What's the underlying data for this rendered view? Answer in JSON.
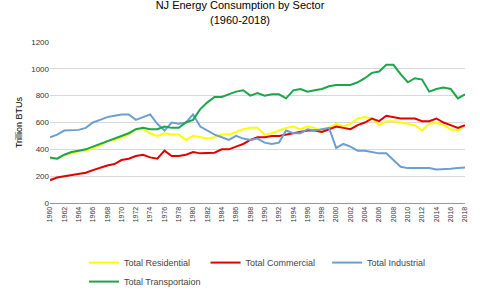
{
  "chart_data": {
    "type": "line",
    "title": "NJ Energy Consumption by Sector\n(1960-2018)",
    "y_label": "Trillion BTUs",
    "x": [
      1960,
      1961,
      1962,
      1963,
      1964,
      1965,
      1966,
      1967,
      1968,
      1969,
      1970,
      1971,
      1972,
      1973,
      1974,
      1975,
      1976,
      1977,
      1978,
      1979,
      1980,
      1981,
      1982,
      1983,
      1984,
      1985,
      1986,
      1987,
      1988,
      1989,
      1990,
      1991,
      1992,
      1993,
      1994,
      1995,
      1996,
      1997,
      1998,
      1999,
      2000,
      2001,
      2002,
      2003,
      2004,
      2005,
      2006,
      2007,
      2008,
      2009,
      2010,
      2011,
      2012,
      2013,
      2014,
      2015,
      2016,
      2017,
      2018
    ],
    "xlim": [
      1960,
      2018
    ],
    "xticks": [
      1960,
      1962,
      1964,
      1966,
      1968,
      1970,
      1972,
      1974,
      1976,
      1978,
      1980,
      1982,
      1984,
      1986,
      1988,
      1990,
      1992,
      1994,
      1996,
      1998,
      2000,
      2002,
      2004,
      2006,
      2008,
      2010,
      2012,
      2014,
      2016,
      2018
    ],
    "ylim": [
      0,
      1200
    ],
    "yticks": [
      0,
      200,
      400,
      600,
      800,
      1000,
      1200
    ],
    "grid": true,
    "legend": "bottom",
    "series": [
      {
        "name": "Total Residential",
        "color": "#ffff00",
        "values": [
          330,
          330,
          355,
          370,
          385,
          390,
          410,
          430,
          460,
          470,
          490,
          510,
          550,
          550,
          520,
          500,
          520,
          510,
          510,
          470,
          500,
          490,
          480,
          490,
          510,
          510,
          530,
          550,
          560,
          560,
          510,
          520,
          540,
          560,
          570,
          550,
          570,
          560,
          530,
          560,
          590,
          570,
          590,
          630,
          640,
          630,
          580,
          610,
          610,
          600,
          590,
          580,
          540,
          590,
          600,
          580,
          550,
          540,
          580
        ]
      },
      {
        "name": "Total Commercial",
        "color": "#e00000",
        "values": [
          170,
          190,
          200,
          210,
          215,
          225,
          245,
          265,
          280,
          290,
          320,
          330,
          350,
          360,
          340,
          330,
          390,
          350,
          350,
          360,
          380,
          370,
          370,
          375,
          400,
          400,
          420,
          440,
          470,
          490,
          490,
          500,
          500,
          510,
          520,
          530,
          540,
          540,
          530,
          550,
          570,
          560,
          550,
          580,
          600,
          630,
          610,
          650,
          640,
          630,
          630,
          630,
          610,
          610,
          630,
          600,
          580,
          560,
          580
        ]
      },
      {
        "name": "Total Industrial",
        "color": "#6c9fd0",
        "values": [
          490,
          510,
          540,
          540,
          545,
          560,
          600,
          620,
          640,
          650,
          660,
          660,
          620,
          640,
          660,
          590,
          540,
          600,
          590,
          600,
          660,
          570,
          540,
          510,
          490,
          470,
          500,
          480,
          470,
          480,
          450,
          440,
          450,
          540,
          520,
          520,
          550,
          540,
          550,
          560,
          410,
          440,
          420,
          390,
          390,
          380,
          370,
          370,
          320,
          270,
          260,
          260,
          260,
          260,
          250,
          250,
          255,
          260,
          265
        ]
      },
      {
        "name": "Total Transportaion",
        "color": "#1aa64a",
        "values": [
          340,
          330,
          360,
          380,
          390,
          400,
          420,
          440,
          460,
          480,
          500,
          520,
          550,
          560,
          550,
          550,
          570,
          560,
          560,
          600,
          620,
          700,
          750,
          790,
          790,
          810,
          830,
          840,
          800,
          820,
          800,
          810,
          810,
          780,
          840,
          850,
          830,
          840,
          850,
          870,
          880,
          880,
          880,
          900,
          930,
          970,
          980,
          1030,
          1030,
          960,
          900,
          930,
          920,
          830,
          850,
          860,
          850,
          780,
          810
        ]
      }
    ]
  }
}
